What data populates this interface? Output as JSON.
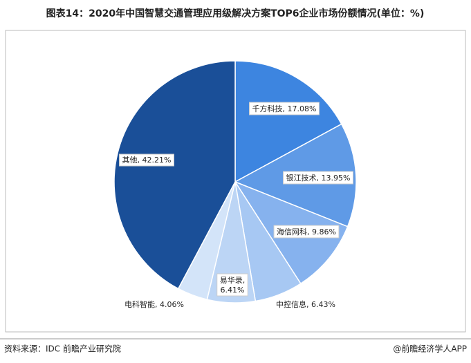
{
  "chart_data": {
    "type": "pie",
    "title": "图表14：2020年中国智慧交通管理应用级解决方案TOP6企业市场份额情况(单位：%)",
    "categories": [
      "千方科技",
      "银江技术",
      "海信网科",
      "中控信息",
      "易华录",
      "电科智能",
      "其他"
    ],
    "values": [
      17.08,
      13.95,
      9.86,
      6.43,
      6.41,
      4.06,
      42.21
    ],
    "value_labels": [
      "千方科技, 17.08%",
      "银江技术, 13.95%",
      "海信网科, 9.86%",
      "中控信息, 6.43%",
      "易华录, 6.41%",
      "电科智能, 4.06%",
      "其他, 42.21%"
    ],
    "colors": [
      "#3d85e0",
      "#5f9ae6",
      "#86b2ee",
      "#a7c8f3",
      "#bcd5f5",
      "#d3e4f9",
      "#1a4f98"
    ],
    "source": "资料来源：IDC 前瞻产业研究院",
    "credit": "@前瞻经济学人APP"
  }
}
